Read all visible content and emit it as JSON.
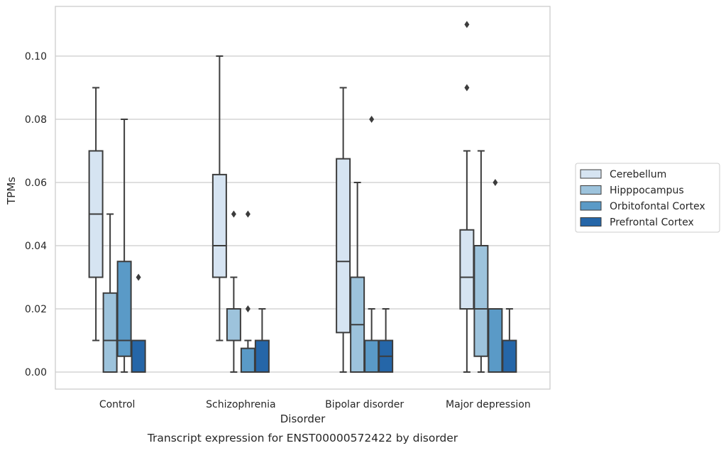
{
  "chart_data": {
    "type": "box",
    "title": "",
    "caption": "Transcript expression for ENST00000572422 by disorder",
    "xlabel": "Disorder",
    "ylabel": "TPMs",
    "ylim": [
      -0.0055,
      0.116
    ],
    "yticks": [
      "0.00",
      "0.02",
      "0.04",
      "0.06",
      "0.08",
      "0.10"
    ],
    "grid": true,
    "legend_position": "right",
    "categories": [
      "Control",
      "Schizophrenia",
      "Bipolar disorder",
      "Major depression"
    ],
    "series": [
      {
        "name": "Cerebellum",
        "color": "#d6e4f2",
        "boxes": [
          {
            "whisker_low": 0.01,
            "q1": 0.03,
            "median": 0.05,
            "q3": 0.07,
            "whisker_high": 0.09,
            "outliers": []
          },
          {
            "whisker_low": 0.01,
            "q1": 0.03,
            "median": 0.04,
            "q3": 0.0625,
            "whisker_high": 0.1,
            "outliers": []
          },
          {
            "whisker_low": 0.0,
            "q1": 0.0125,
            "median": 0.035,
            "q3": 0.0675,
            "whisker_high": 0.09,
            "outliers": []
          },
          {
            "whisker_low": 0.0,
            "q1": 0.02,
            "median": 0.03,
            "q3": 0.045,
            "whisker_high": 0.07,
            "outliers": [
              0.09,
              0.11
            ]
          }
        ]
      },
      {
        "name": "Hipppocampus",
        "color": "#9dc3dc",
        "boxes": [
          {
            "whisker_low": 0.0,
            "q1": 0.0,
            "median": 0.01,
            "q3": 0.025,
            "whisker_high": 0.05,
            "outliers": []
          },
          {
            "whisker_low": 0.0,
            "q1": 0.01,
            "median": 0.01,
            "q3": 0.02,
            "whisker_high": 0.03,
            "outliers": [
              0.05
            ]
          },
          {
            "whisker_low": 0.0,
            "q1": 0.0,
            "median": 0.015,
            "q3": 0.03,
            "whisker_high": 0.06,
            "outliers": []
          },
          {
            "whisker_low": 0.0,
            "q1": 0.005,
            "median": 0.02,
            "q3": 0.04,
            "whisker_high": 0.07,
            "outliers": []
          }
        ]
      },
      {
        "name": "Orbitofontal Cortex",
        "color": "#5a9ac7",
        "boxes": [
          {
            "whisker_low": 0.0,
            "q1": 0.005,
            "median": 0.01,
            "q3": 0.035,
            "whisker_high": 0.08,
            "outliers": []
          },
          {
            "whisker_low": 0.0,
            "q1": 0.0,
            "median": 0.0,
            "q3": 0.0075,
            "whisker_high": 0.01,
            "outliers": [
              0.02,
              0.05
            ]
          },
          {
            "whisker_low": 0.0,
            "q1": 0.0,
            "median": 0.0,
            "q3": 0.01,
            "whisker_high": 0.02,
            "outliers": [
              0.08
            ]
          },
          {
            "whisker_low": 0.0,
            "q1": 0.0,
            "median": 0.0,
            "q3": 0.02,
            "whisker_high": 0.02,
            "outliers": [
              0.06
            ]
          }
        ]
      },
      {
        "name": "Prefrontal Cortex",
        "color": "#2566a8",
        "boxes": [
          {
            "whisker_low": 0.0,
            "q1": 0.0,
            "median": 0.0,
            "q3": 0.01,
            "whisker_high": 0.01,
            "outliers": [
              0.03
            ]
          },
          {
            "whisker_low": 0.0,
            "q1": 0.0,
            "median": 0.0,
            "q3": 0.01,
            "whisker_high": 0.02,
            "outliers": []
          },
          {
            "whisker_low": 0.0,
            "q1": 0.0,
            "median": 0.005,
            "q3": 0.01,
            "whisker_high": 0.02,
            "outliers": []
          },
          {
            "whisker_low": 0.0,
            "q1": 0.0,
            "median": 0.0,
            "q3": 0.01,
            "whisker_high": 0.02,
            "outliers": []
          }
        ]
      }
    ]
  }
}
